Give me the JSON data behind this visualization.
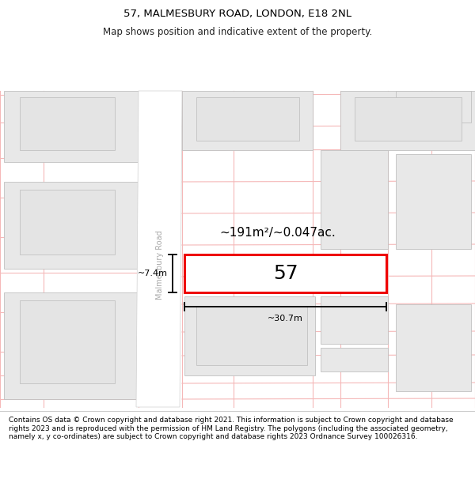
{
  "title_line1": "57, MALMESBURY ROAD, LONDON, E18 2NL",
  "title_line2": "Map shows position and indicative extent of the property.",
  "footer_text": "Contains OS data © Crown copyright and database right 2021. This information is subject to Crown copyright and database rights 2023 and is reproduced with the permission of HM Land Registry. The polygons (including the associated geometry, namely x, y co-ordinates) are subject to Crown copyright and database rights 2023 Ordnance Survey 100026316.",
  "map_bg": "#ffffff",
  "stripe_color": "#f5b8b8",
  "building_fill": "#e8e8e8",
  "building_edge": "#c0c0c0",
  "inner_fill": "#e0e0e0",
  "inner_edge": "#bbbbbb",
  "road_fill": "#ffffff",
  "road_edge": "#cccccc",
  "property_fill": "#ffffff",
  "property_edge": "#ee0000",
  "property_label": "57",
  "area_label": "~191m²/~0.047ac.",
  "width_label": "~30.7m",
  "height_label": "~7.4m",
  "road_label": "Malmesbury Road",
  "title_fontsize": 9.5,
  "subtitle_fontsize": 8.5,
  "footer_fontsize": 6.5,
  "prop_label_fontsize": 18,
  "area_fontsize": 11,
  "dim_fontsize": 8
}
